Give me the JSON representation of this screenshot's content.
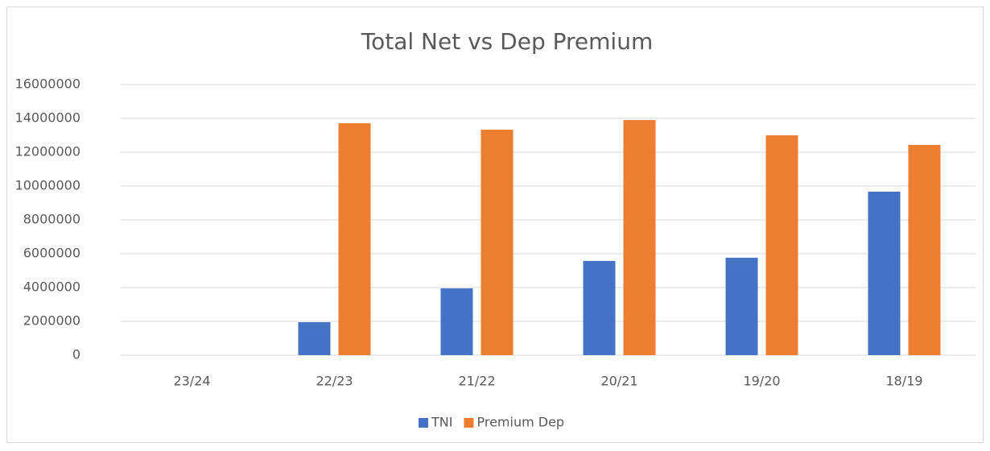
{
  "chart_data": {
    "type": "bar",
    "title": "Total Net vs Dep Premium",
    "categories": [
      "23/24",
      "22/23",
      "21/22",
      "20/21",
      "19/20",
      "18/19"
    ],
    "series": [
      {
        "name": "TNI",
        "color": "#4472c4",
        "values": [
          0,
          1950000,
          3950000,
          5570000,
          5760000,
          9670000
        ]
      },
      {
        "name": "Premium Dep",
        "color": "#ed7d31",
        "values": [
          0,
          13710000,
          13330000,
          13900000,
          13000000,
          12430000
        ]
      }
    ],
    "ylim": [
      0,
      16000000
    ],
    "yticks": [
      0,
      2000000,
      4000000,
      6000000,
      8000000,
      10000000,
      12000000,
      14000000,
      16000000
    ],
    "grid": true,
    "legend": "bottom"
  }
}
